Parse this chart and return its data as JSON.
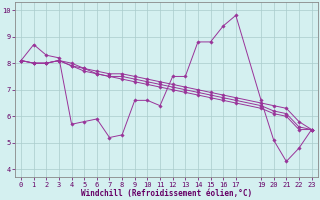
{
  "title": "",
  "xlabel": "Windchill (Refroidissement éolien,°C)",
  "ylabel": "",
  "background_color": "#d4f0f0",
  "line_color": "#993399",
  "grid_color": "#aacccc",
  "x_ticks": [
    0,
    1,
    2,
    3,
    4,
    5,
    6,
    7,
    8,
    9,
    10,
    11,
    12,
    13,
    14,
    15,
    16,
    17,
    19,
    20,
    21,
    22,
    23
  ],
  "y_ticks": [
    4,
    5,
    6,
    7,
    8,
    9,
    10
  ],
  "xlim": [
    -0.5,
    23.5
  ],
  "ylim": [
    3.7,
    10.3
  ],
  "series": [
    [
      8.1,
      8.7,
      8.3,
      8.2,
      5.7,
      5.8,
      5.9,
      5.2,
      5.3,
      6.6,
      6.6,
      6.4,
      7.5,
      7.5,
      8.8,
      8.8,
      9.4,
      9.8,
      6.6,
      5.1,
      4.3,
      4.8,
      5.5
    ],
    [
      8.1,
      8.0,
      8.0,
      8.1,
      8.0,
      7.8,
      7.7,
      7.6,
      7.6,
      7.5,
      7.4,
      7.3,
      7.2,
      7.1,
      7.0,
      6.9,
      6.8,
      6.7,
      6.5,
      6.4,
      6.3,
      5.8,
      5.5
    ],
    [
      8.1,
      8.0,
      8.0,
      8.1,
      7.9,
      7.8,
      7.6,
      7.5,
      7.5,
      7.4,
      7.3,
      7.2,
      7.1,
      7.0,
      6.9,
      6.8,
      6.7,
      6.6,
      6.4,
      6.2,
      6.1,
      5.6,
      5.5
    ],
    [
      8.1,
      8.0,
      8.0,
      8.1,
      7.9,
      7.7,
      7.6,
      7.5,
      7.4,
      7.3,
      7.2,
      7.1,
      7.0,
      6.9,
      6.8,
      6.7,
      6.6,
      6.5,
      6.3,
      6.1,
      6.0,
      5.5,
      5.5
    ]
  ],
  "x_values": [
    0,
    1,
    2,
    3,
    4,
    5,
    6,
    7,
    8,
    9,
    10,
    11,
    12,
    13,
    14,
    15,
    16,
    17,
    19,
    20,
    21,
    22,
    23
  ]
}
